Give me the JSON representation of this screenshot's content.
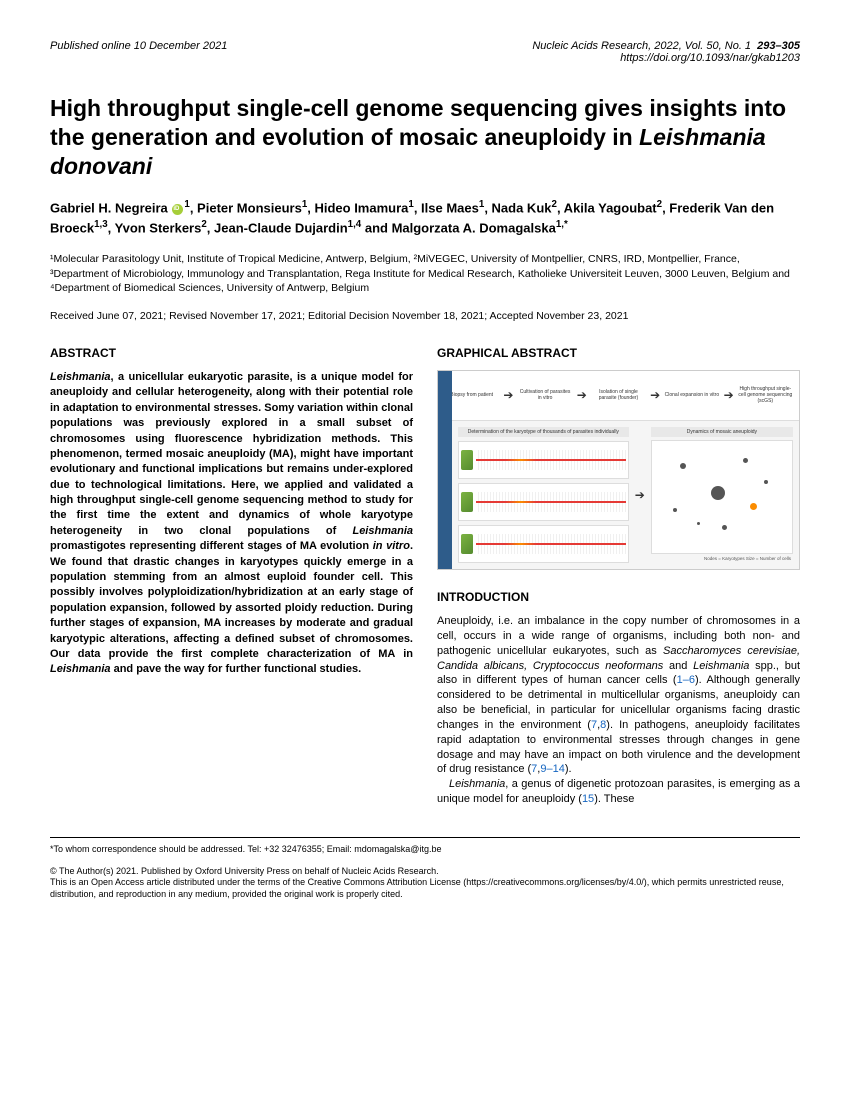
{
  "header": {
    "left": "Published online 10 December 2021",
    "journal": "Nucleic Acids Research, 2022, Vol. 50, No. 1",
    "pages": "293–305",
    "doi": "https://doi.org/10.1093/nar/gkab1203"
  },
  "title": {
    "pre": "High throughput single-cell genome sequencing gives insights into the generation and evolution of mosaic aneuploidy in ",
    "italic": "Leishmania donovani"
  },
  "authors_html": "Gabriel H. Negreira <span class='orcid'></span><sup>1</sup>, Pieter Monsieurs<sup>1</sup>, Hideo Imamura<sup>1</sup>, Ilse Maes<sup>1</sup>, Nada Kuk<sup>2</sup>, Akila Yagoubat<sup>2</sup>, Frederik Van den Broeck<sup>1,3</sup>, Yvon Sterkers<sup>2</sup>, Jean-Claude Dujardin<sup>1,4</sup> and Malgorzata A. Domagalska<sup>1,*</sup>",
  "affiliations": "¹Molecular Parasitology Unit, Institute of Tropical Medicine, Antwerp, Belgium, ²MiVEGEC, University of Montpellier, CNRS, IRD, Montpellier, France, ³Department of Microbiology, Immunology and Transplantation, Rega Institute for Medical Research, Katholieke Universiteit Leuven, 3000 Leuven, Belgium and ⁴Department of Biomedical Sciences, University of Antwerp, Belgium",
  "dates": "Received June 07, 2021; Revised November 17, 2021; Editorial Decision November 18, 2021; Accepted November 23, 2021",
  "abstract": {
    "heading": "ABSTRACT",
    "p1a": "Leishmania",
    "p1b": ", a unicellular eukaryotic parasite, is a unique model for aneuploidy and cellular heterogeneity, along with their potential role in adaptation to environmental stresses. Somy variation within clonal populations was previously explored in a small subset of chromosomes using fluorescence hybridization methods. This phenomenon, termed mosaic aneuploidy (MA), might have important evolutionary and functional implications but remains under-explored due to technological limitations. Here, we applied and validated a high throughput single-cell genome sequencing method to study for the first time the extent and dynamics of whole karyotype heterogeneity in two clonal populations of ",
    "p1c": "Leishmania",
    "p1d": " promastigotes representing different stages of MA evolution ",
    "p1e": "in vitro",
    "p1f": ". We found that drastic changes in karyotypes quickly emerge in a population stemming from an almost euploid founder cell. This possibly involves polyploidization/hybridization at an early stage of population expansion, followed by assorted ploidy reduction. During further stages of expansion, MA increases by moderate and gradual karyotypic alterations, affecting a defined subset of chromosomes. Our data provide the first complete characterization of MA in ",
    "p1g": "Leishmania",
    "p1h": " and pave the way for further functional studies."
  },
  "graphical": {
    "heading": "GRAPHICAL ABSTRACT",
    "steps": [
      "Biopsy from patient",
      "Cultivation of parasites in vitro",
      "Isolation of single parasite (founder)",
      "Clonal expansion in vitro",
      "High throughput single-cell genome sequencing (scGS)"
    ],
    "karyo_label": "Determination of the karyotype of thousands of parasites individually",
    "karyotypes": [
      "Karyotype 1",
      "Karyotype 2",
      "Karyotype 3"
    ],
    "net_label": "Dynamics of mosaic aneuploidy",
    "net_caption": "Nodes = Karyotypes  Size = Number of cells",
    "colors": {
      "sidebar": "#2e5c8a",
      "node_main": "#555555",
      "node_accent": "#fb8c00"
    }
  },
  "introduction": {
    "heading": "INTRODUCTION",
    "p1a": "Aneuploidy, i.e. an imbalance in the copy number of chromosomes in a cell, occurs in a wide range of organisms, including both non- and pathogenic unicellular eukaryotes, such as ",
    "p1b": "Saccharomyces cerevisiae, Candida albicans, Cryptococcus neoformans",
    "p1c": " and ",
    "p1d": "Leishmania",
    "p1e": " spp., but also in different types of human cancer cells (",
    "ref1": "1–6",
    "p1f": "). Although generally considered to be detrimental in multicellular organisms, aneuploidy can also be beneficial, in particular for unicellular organisms facing drastic changes in the environment (",
    "ref2": "7",
    "p1g": ",",
    "ref3": "8",
    "p1h": "). In pathogens, aneuploidy facilitates rapid adaptation to environmental stresses through changes in gene dosage and may have an impact on both virulence and the development of drug resistance (",
    "ref4": "7",
    "p1i": ",",
    "ref5": "9–14",
    "p1j": ").",
    "p2a": "Leishmania",
    "p2b": ", a genus of digenetic protozoan parasites, is emerging as a unique model for aneuploidy (",
    "ref6": "15",
    "p2c": "). These"
  },
  "footer": {
    "corr": "*To whom correspondence should be addressed. Tel: +32 32476355; Email: mdomagalska@itg.be",
    "copyright": "© The Author(s) 2021. Published by Oxford University Press on behalf of Nucleic Acids Research.",
    "license": "This is an Open Access article distributed under the terms of the Creative Commons Attribution License (https://creativecommons.org/licenses/by/4.0/), which permits unrestricted reuse, distribution, and reproduction in any medium, provided the original work is properly cited."
  }
}
